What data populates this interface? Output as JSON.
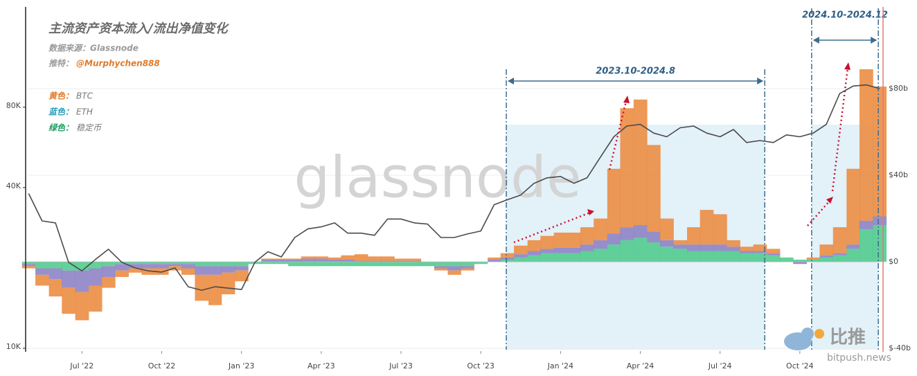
{
  "chart_data": {
    "type": "stacked-bar",
    "title": "主流资产资本流入/流出净值变化",
    "source": "数据来源：Glassnode",
    "author_label": "推特：",
    "author": "@Murphychen888",
    "watermark": "glassnode",
    "logo_text": "比推",
    "logo_url": "bitpush.news",
    "x": [
      2022.333,
      2022.375,
      2022.417,
      2022.458,
      2022.5,
      2022.542,
      2022.583,
      2022.625,
      2022.667,
      2022.708,
      2022.75,
      2022.792,
      2022.833,
      2022.875,
      2022.917,
      2022.958,
      2023.0,
      2023.042,
      2023.083,
      2023.125,
      2023.167,
      2023.208,
      2023.25,
      2023.292,
      2023.333,
      2023.375,
      2023.417,
      2023.458,
      2023.5,
      2023.542,
      2023.583,
      2023.625,
      2023.667,
      2023.708,
      2023.75,
      2023.792,
      2023.833,
      2023.875,
      2023.917,
      2023.958,
      2024.0,
      2024.042,
      2024.083,
      2024.125,
      2024.167,
      2024.208,
      2024.25,
      2024.292,
      2024.333,
      2024.375,
      2024.417,
      2024.458,
      2024.5,
      2024.542,
      2024.583,
      2024.625,
      2024.667,
      2024.708,
      2024.75,
      2024.792,
      2024.833,
      2024.875,
      2024.917,
      2024.958,
      2025.0
    ],
    "xlim": [
      2022.33,
      2025.0
    ],
    "xticks": [
      {
        "value": 2022.5,
        "label": "Jul '22"
      },
      {
        "value": 2022.75,
        "label": "Oct '22"
      },
      {
        "value": 2023.0,
        "label": "Jan '23"
      },
      {
        "value": 2023.25,
        "label": "Apr '23"
      },
      {
        "value": 2023.5,
        "label": "Jul '23"
      },
      {
        "value": 2023.75,
        "label": "Oct '23"
      },
      {
        "value": 2024.0,
        "label": "Jan '24"
      },
      {
        "value": 2024.25,
        "label": "Apr '24"
      },
      {
        "value": 2024.5,
        "label": "Jul '24"
      },
      {
        "value": 2024.75,
        "label": "Oct '24"
      }
    ],
    "ylog": true,
    "ylim": [
      9880,
      190000
    ],
    "yticks": [
      {
        "value": 10000,
        "label": "10K"
      },
      {
        "value": 40000,
        "label": "40K"
      },
      {
        "value": 80000,
        "label": "80K"
      }
    ],
    "y2lim": [
      -40.6,
      117.8
    ],
    "y2ticks": [
      {
        "value": -40,
        "label": "$-40b"
      },
      {
        "value": 0,
        "label": "$0"
      },
      {
        "value": 40,
        "label": "$40b"
      },
      {
        "value": 80,
        "label": "$80b"
      }
    ],
    "price_line": {
      "color": "#4a4a4a",
      "values": [
        38000,
        30000,
        29500,
        21000,
        19500,
        21500,
        23500,
        21000,
        20000,
        19500,
        19300,
        20000,
        17000,
        16500,
        17000,
        16800,
        16600,
        21000,
        23000,
        22000,
        26000,
        28000,
        28500,
        29500,
        27000,
        27000,
        26500,
        30500,
        30500,
        29500,
        29200,
        26000,
        26000,
        26800,
        27500,
        34500,
        36000,
        37500,
        41500,
        43500,
        44000,
        41500,
        43500,
        52000,
        62000,
        68000,
        69000,
        64000,
        62000,
        67000,
        68000,
        64000,
        62000,
        66000,
        59000,
        60000,
        59000,
        63000,
        62000,
        64000,
        69000,
        90000,
        96000,
        97000,
        94000
      ]
    },
    "series": [
      {
        "name": "稳定币",
        "color_label": "绿色：",
        "label_color": "#1f9e62",
        "color": "#4fc98c",
        "axis": "y2",
        "values": [
          -1,
          -3,
          -3,
          -4,
          -4,
          -3,
          -2,
          -1,
          -1,
          -1,
          -1,
          -1,
          -1,
          -2,
          -2,
          -2,
          -2,
          -1,
          -1,
          -1,
          -2,
          -2,
          -2,
          -2,
          -2,
          -2,
          -2,
          -2,
          -2,
          -2,
          -2,
          -2,
          -2,
          -2,
          -1,
          0,
          1,
          2,
          3,
          4,
          4,
          4,
          5,
          6,
          8,
          10,
          11,
          9,
          7,
          6,
          5,
          5,
          5,
          5,
          4,
          4,
          3,
          2,
          1,
          1,
          2,
          3,
          6,
          15,
          17
        ]
      },
      {
        "name": "ETH",
        "color_label": "蓝色：",
        "label_color": "#2a9dbb",
        "color": "#8b80c4",
        "axis": "y2",
        "values": [
          -1,
          -3,
          -5,
          -8,
          -10,
          -8,
          -5,
          -3,
          -2,
          -2,
          -2,
          -1,
          -2,
          -4,
          -4,
          -3,
          -2,
          0,
          1,
          1,
          1,
          1.5,
          1.5,
          1,
          1,
          0.5,
          0.5,
          0.5,
          0.5,
          0.5,
          0,
          -1,
          -2,
          -1,
          0,
          1,
          1,
          1.5,
          2,
          2,
          2.5,
          2.5,
          3,
          4,
          5,
          6,
          6,
          5,
          3,
          2,
          3,
          3,
          3,
          2,
          1,
          1,
          1,
          0,
          -1,
          0,
          1,
          1,
          2,
          4,
          4
        ]
      },
      {
        "name": "BTC",
        "color_label": "黄色：",
        "label_color": "#e07b2a",
        "color": "#ec8a3e",
        "axis": "y2",
        "values": [
          -1,
          -5,
          -8,
          -12,
          -13,
          -12,
          -5,
          -3,
          -2,
          -3,
          -3,
          -2,
          -3,
          -12,
          -14,
          -10,
          -5,
          0,
          0.5,
          0.5,
          0.5,
          1,
          1,
          1,
          2,
          3,
          2,
          2,
          1,
          1,
          0,
          -1,
          -2,
          -1,
          0,
          1,
          2,
          4,
          5,
          6,
          7,
          7,
          8,
          10,
          30,
          55,
          58,
          40,
          10,
          2,
          8,
          16,
          14,
          3,
          2,
          3,
          2,
          0,
          0,
          1,
          5,
          12,
          35,
          70,
          60
        ]
      }
    ],
    "legend_order": [
      2,
      1,
      0
    ],
    "annotations": [
      {
        "text": "2023.10-2024.8",
        "x": [
          2023.83,
          2024.64
        ]
      },
      {
        "text": "2024.10-2024.12",
        "x": [
          2024.787,
          2024.996
        ]
      }
    ],
    "grid": true
  }
}
